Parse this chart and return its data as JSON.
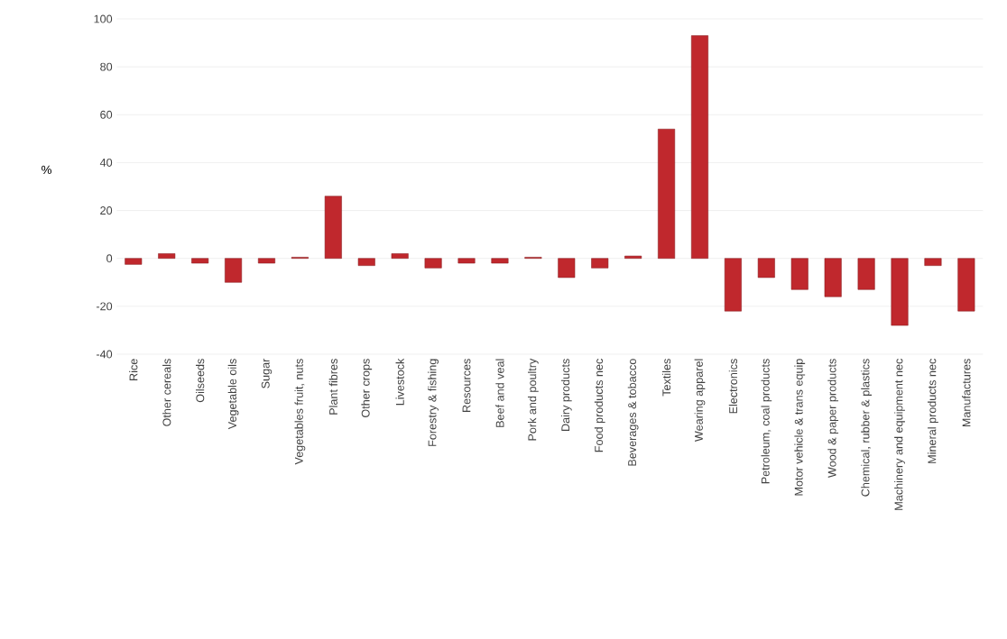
{
  "chart_data": {
    "type": "bar",
    "ylabel": "%",
    "categories": [
      "Rice",
      "Other cereals",
      "Oilseeds",
      "Vegetable oils",
      "Sugar",
      "Vegetables fruit, nuts",
      "Plant fibres",
      "Other crops",
      "Livestock",
      "Forestry & fishing",
      "Resources",
      "Beef and veal",
      "Pork and poultry",
      "Dairy products",
      "Food products nec",
      "Beverages & tobacco",
      "Textiles",
      "Wearing apparel",
      "Electronics",
      "Petroleum, coal products",
      "Motor vehicle & trans equip",
      "Wood & paper products",
      "Chemical, rubber & plastics",
      "Machinery and equipment nec",
      "Mineral products nec",
      "Manufactures"
    ],
    "values": [
      -2.5,
      2,
      -2,
      -10,
      -2,
      0.5,
      26,
      -3,
      2,
      -4,
      -2,
      -2,
      0.5,
      -8,
      -4,
      1,
      54,
      93,
      -22,
      -8,
      -13,
      -16,
      -13,
      -28,
      -3,
      -22
    ],
    "color": "#c0282d",
    "ylim": [
      -40,
      100
    ],
    "yticks": [
      -40,
      -20,
      0,
      20,
      40,
      60,
      80,
      100
    ],
    "grid": "y"
  }
}
